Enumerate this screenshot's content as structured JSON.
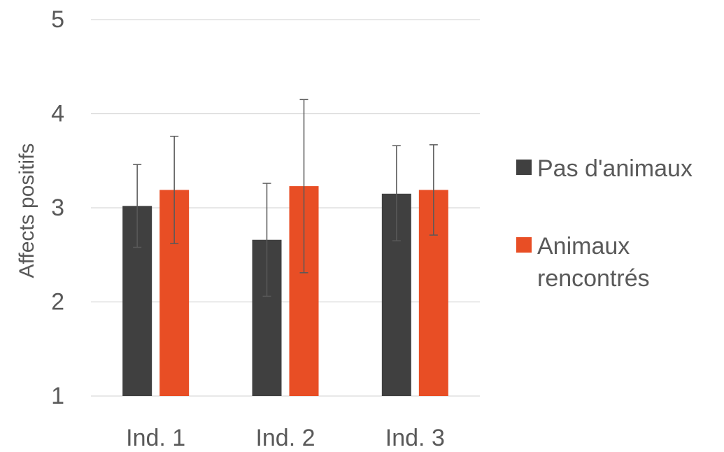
{
  "chart_data": {
    "type": "bar",
    "title": "",
    "xlabel": "",
    "ylabel": "Affects positifs",
    "ylim": [
      1,
      5
    ],
    "yticks": [
      1,
      2,
      3,
      4,
      5
    ],
    "grid": true,
    "legend_position": "right",
    "categories": [
      "Ind. 1",
      "Ind. 2",
      "Ind. 3"
    ],
    "series": [
      {
        "name": "Pas d'animaux",
        "color": "#404040",
        "values": [
          3.02,
          2.66,
          3.15
        ],
        "error_low": [
          2.58,
          2.06,
          2.65
        ],
        "error_high": [
          3.46,
          3.26,
          3.66
        ]
      },
      {
        "name": "Animaux rencontrés",
        "legend_lines": [
          "Animaux",
          "rencontrés"
        ],
        "color": "#E84E25",
        "values": [
          3.19,
          3.23,
          3.19
        ],
        "error_low": [
          2.62,
          2.31,
          2.71
        ],
        "error_high": [
          3.76,
          4.15,
          3.67
        ]
      }
    ]
  }
}
